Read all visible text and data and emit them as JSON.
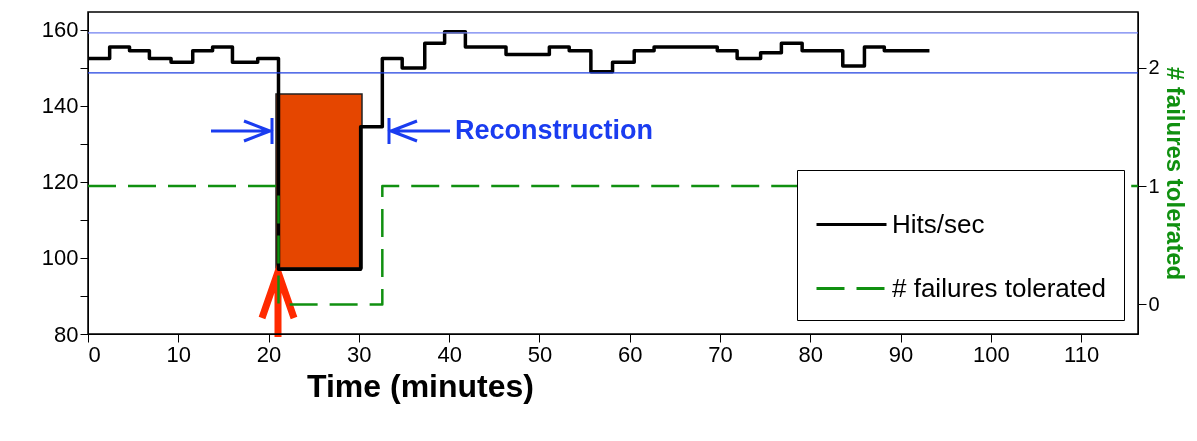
{
  "chart_data": {
    "type": "step",
    "xlabel": "Time (minutes)",
    "y2label": "# failures tolerated",
    "xlim": [
      0,
      116.3
    ],
    "xticks": [
      0,
      10,
      20,
      30,
      40,
      50,
      60,
      70,
      80,
      90,
      100,
      110
    ],
    "ylim": [
      80,
      164.7
    ],
    "yticks": [
      80,
      {
        "value": 90,
        "label": null
      },
      100,
      {
        "value": 110,
        "label": null
      },
      120,
      {
        "value": 130,
        "label": null
      },
      140,
      {
        "value": 150,
        "label": null
      },
      160
    ],
    "y2lim": [
      -0.25,
      2.47
    ],
    "y2ticks": [
      0,
      1,
      2
    ],
    "series": [
      {
        "name": "Hits/sec",
        "color": "#000000",
        "line_style": "solid",
        "x": [
          0,
          2.4,
          4.6,
          6.8,
          9.2,
          11.6,
          13.8,
          16.0,
          18.8,
          21.1,
          30.2,
          32.6,
          34.8,
          37.3,
          39.5,
          41.8,
          46.3,
          51.1,
          53.3,
          55.7,
          58.1,
          60.5,
          62.7,
          69.7,
          71.9,
          74.5,
          76.8,
          79.1,
          83.6,
          86.0,
          88.2,
          93.2
        ],
        "values": [
          152.5,
          155.5,
          154.5,
          152.5,
          151.5,
          154.5,
          155.5,
          151.5,
          152.5,
          97,
          134.5,
          152.5,
          150,
          156.5,
          159.5,
          155.5,
          153.5,
          155.5,
          154.5,
          149,
          151.5,
          154.5,
          155.5,
          154.5,
          152.5,
          154,
          156.5,
          154.5,
          150.5,
          155.5,
          154.5,
          154.5
        ]
      },
      {
        "name": "# failures tolerated",
        "axis": "y2",
        "color": "#109010",
        "line_style": "dashed",
        "x": [
          0,
          21.1,
          32.6,
          116.3
        ],
        "values": [
          1,
          0,
          1,
          1
        ]
      }
    ],
    "ref_lines": [
      {
        "axis": "y",
        "value": 159.2,
        "color": "#7080f0"
      },
      {
        "axis": "y",
        "value": 148.7,
        "color": "#2040e0"
      }
    ],
    "annotations": [
      "Reconstruction"
    ],
    "legend": "bottom right"
  }
}
